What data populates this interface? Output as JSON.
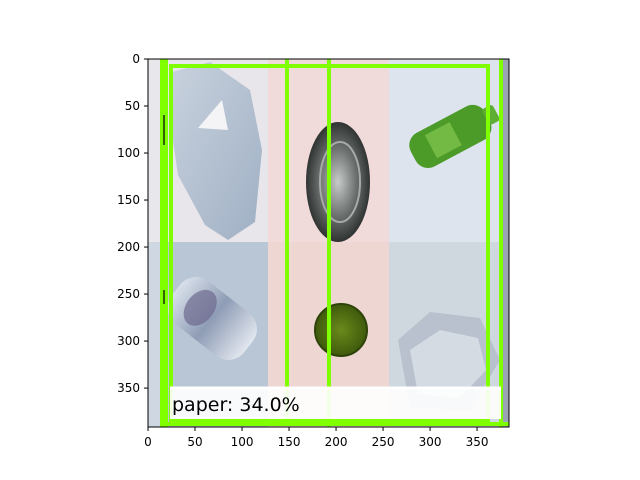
{
  "figure": {
    "caption": "paper: 34.0%",
    "x_ticks": [
      "0",
      "50",
      "100",
      "150",
      "200",
      "250",
      "300",
      "350"
    ],
    "y_ticks": [
      "0",
      "50",
      "100",
      "150",
      "200",
      "250",
      "300",
      "350"
    ],
    "box_color": "#80ff00",
    "tiles": [
      {
        "name": "tile-paper",
        "depicts": "crumpled paper sheet",
        "bg": "#e8e6ea"
      },
      {
        "name": "tile-metal-lid",
        "depicts": "round metal can lid",
        "bg": "#f0dada"
      },
      {
        "name": "tile-green-bottle",
        "depicts": "green plastic bottle",
        "bg": "#dde4ee"
      },
      {
        "name": "tile-clear-bottle",
        "depicts": "clear plastic bottle",
        "bg": "#b9c6d6"
      },
      {
        "name": "tile-green-lid",
        "depicts": "green bottle cap",
        "bg": "#eed6d3"
      },
      {
        "name": "tile-plastic-container",
        "depicts": "clear plastic container",
        "bg": "#cfd8df"
      }
    ]
  }
}
